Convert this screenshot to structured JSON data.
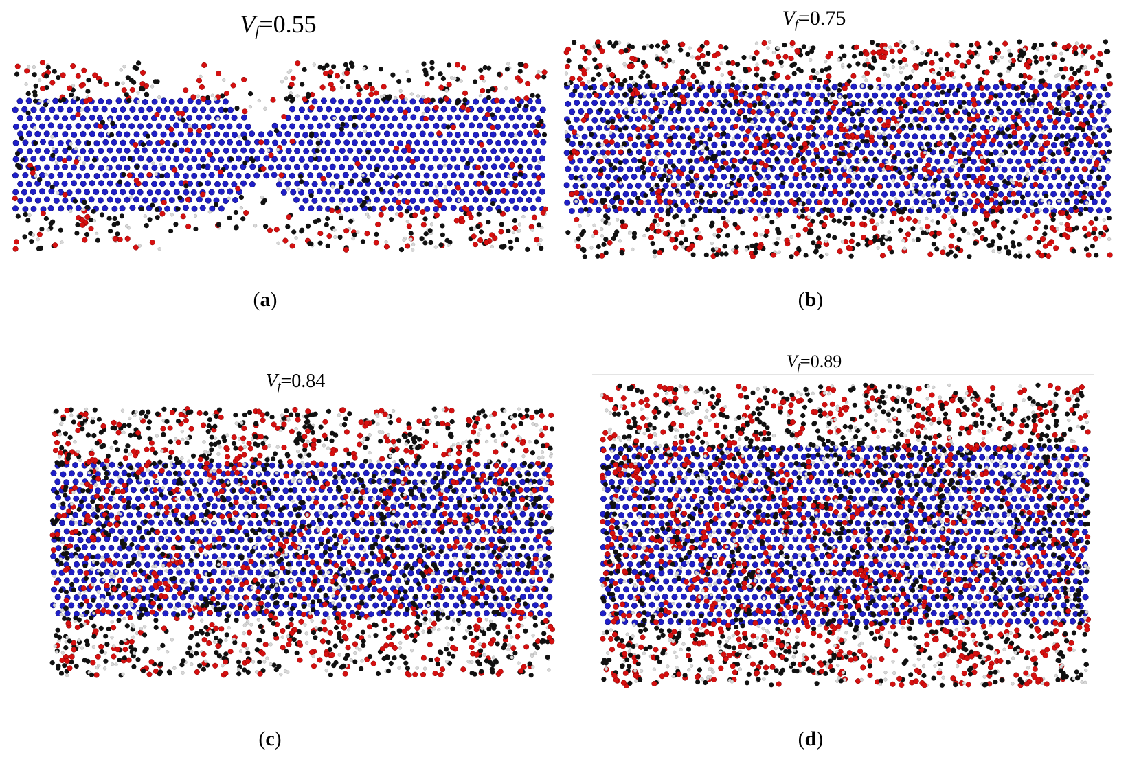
{
  "panels": [
    {
      "id": "a",
      "vf_symbol": "V",
      "vf_subscript": "f",
      "vf_value": "=0.55",
      "caption_letter": "a",
      "density": 0.55,
      "break": true
    },
    {
      "id": "b",
      "vf_symbol": "V",
      "vf_subscript": "f",
      "vf_value": "=0.75",
      "caption_letter": "b",
      "density": 0.75,
      "break": false
    },
    {
      "id": "c",
      "vf_symbol": "V",
      "vf_subscript": "f",
      "vf_value": "=0.84",
      "caption_letter": "c",
      "density": 0.84,
      "break": false
    },
    {
      "id": "d",
      "vf_symbol": "V",
      "vf_subscript": "f",
      "vf_value": "=0.89",
      "caption_letter": "d",
      "density": 0.89,
      "break": false
    }
  ],
  "caption_open": "(",
  "caption_close": ")",
  "colors": {
    "nanotube": "#1f1fc8",
    "oxygen": "#d61010",
    "carbon": "#111111",
    "hydrogen": "#d8d8d8"
  }
}
